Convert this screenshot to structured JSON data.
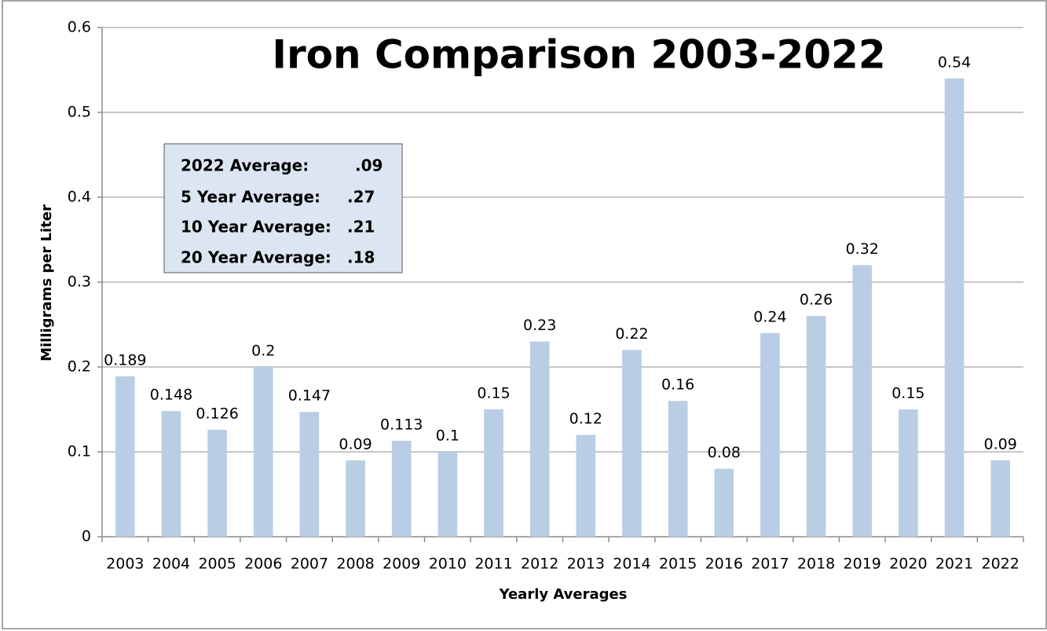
{
  "chart_data": {
    "type": "bar",
    "title": "Iron Comparison 2003-2022",
    "x_label": "Yearly Averages",
    "y_label": "Milligrams per Liter",
    "categories": [
      "2003",
      "2004",
      "2005",
      "2006",
      "2007",
      "2008",
      "2009",
      "2010",
      "2011",
      "2012",
      "2013",
      "2014",
      "2015",
      "2016",
      "2017",
      "2018",
      "2019",
      "2020",
      "2021",
      "2022"
    ],
    "values": [
      0.189,
      0.148,
      0.126,
      0.2,
      0.147,
      0.09,
      0.113,
      0.1,
      0.15,
      0.23,
      0.12,
      0.22,
      0.16,
      0.08,
      0.24,
      0.26,
      0.32,
      0.15,
      0.54,
      0.09
    ],
    "color": "#b9cde5",
    "ylim": [
      0,
      0.6
    ],
    "yticks": [
      0,
      0.1,
      0.2,
      0.3,
      0.4,
      0.5,
      0.6
    ],
    "grid": true,
    "annotations": [
      {
        "label": "2022 Average:",
        "value": ".09"
      },
      {
        "label": "5 Year Average:",
        "value": ".27"
      },
      {
        "label": "10 Year Average:",
        "value": ".21"
      },
      {
        "label": "20 Year Average:",
        "value": ".18"
      }
    ]
  }
}
